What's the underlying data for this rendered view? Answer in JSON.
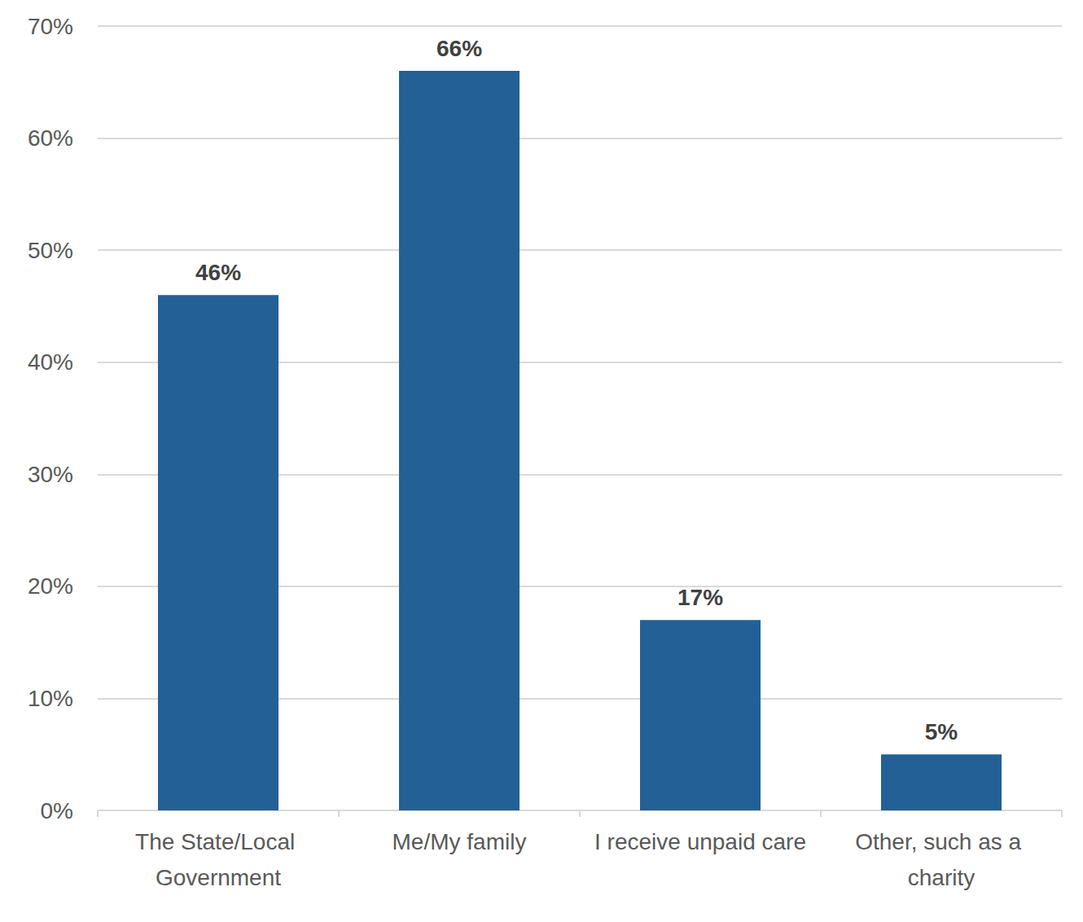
{
  "chart_data": {
    "type": "bar",
    "categories": [
      "The State/Local Government",
      "Me/My family",
      "I receive unpaid care",
      "Other, such as a charity"
    ],
    "values": [
      46,
      66,
      17,
      5
    ],
    "value_labels": [
      "46%",
      "66%",
      "17%",
      "5%"
    ],
    "color": "#236095",
    "ylim": [
      0,
      70
    ],
    "yticks": [
      {
        "value": 0,
        "label": "0%"
      },
      {
        "value": 10,
        "label": "10%"
      },
      {
        "value": 20,
        "label": "20%"
      },
      {
        "value": 30,
        "label": "30%"
      },
      {
        "value": 40,
        "label": "40%"
      },
      {
        "value": 50,
        "label": "50%"
      },
      {
        "value": 60,
        "label": "60%"
      },
      {
        "value": 70,
        "label": "70%"
      }
    ],
    "grid": true,
    "data_labels": true
  }
}
